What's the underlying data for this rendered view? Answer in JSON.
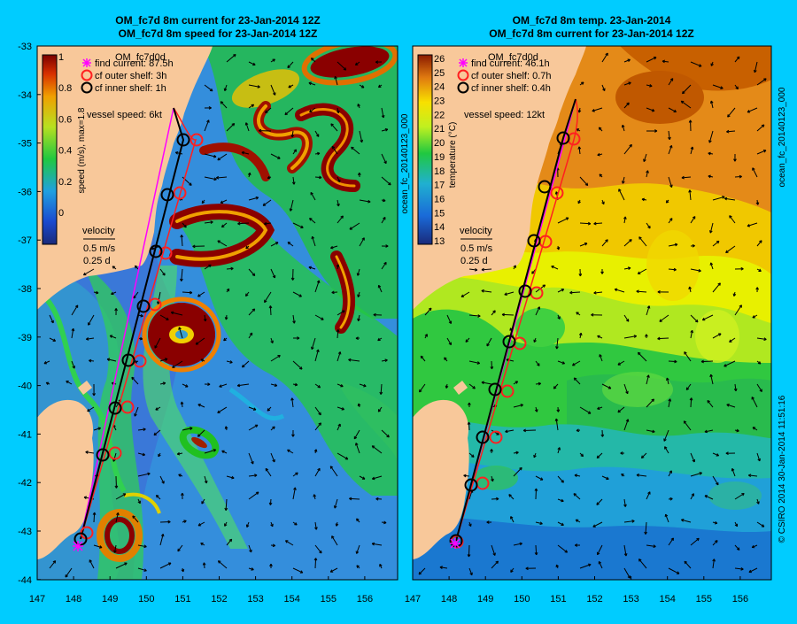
{
  "left_panel": {
    "title_line1": "OM_fc7d 8m current for 23-Jan-2014 12Z",
    "title_line2": "OM_fc7d 8m speed for 23-Jan-2014 12Z",
    "run_label": "OM_fc7d0d",
    "legend": [
      {
        "symbol": "magenta-star",
        "text": "find current: 87.5h"
      },
      {
        "symbol": "red-circle",
        "text": "cf outer shelf: 3h"
      },
      {
        "symbol": "black-circle",
        "text": "cf inner shelf: 1h"
      }
    ],
    "vessel_speed": "vessel speed: 6kt",
    "colorbar_label": "speed (m/s), max=1.8",
    "colorbar_ticks": [
      "1",
      "0.8",
      "0.6",
      "0.4",
      "0.2",
      "0"
    ],
    "velocity_label": "velocity",
    "velocity_scale_1": "0.5 m/s",
    "velocity_scale_2": "0.25 d"
  },
  "right_panel": {
    "title_line1": "OM_fc7d 8m temp. 23-Jan-2014",
    "title_line2": "OM_fc7d 8m current for 23-Jan-2014 12Z",
    "run_label": "OM_fc7d0d",
    "legend": [
      {
        "symbol": "magenta-star",
        "text": "find current: 46.1h"
      },
      {
        "symbol": "red-circle",
        "text": "cf outer shelf: 0.7h"
      },
      {
        "symbol": "black-circle",
        "text": "cf inner shelf: 0.4h"
      }
    ],
    "vessel_speed": "vessel speed: 12kt",
    "colorbar_label": "temperature (°C)",
    "colorbar_ticks": [
      "26",
      "25",
      "24",
      "23",
      "22",
      "21",
      "20",
      "19",
      "18",
      "17",
      "16",
      "15",
      "14",
      "13"
    ],
    "velocity_label": "velocity",
    "velocity_scale_1": "0.5 m/s",
    "velocity_scale_2": "0.25 d"
  },
  "left_side_text": "ocean_fc_20140123_000",
  "right_side_text_top": "ocean_fc_20140123_000",
  "right_side_text_bottom": "© CSIRO 2014   30-Jan-2014 11:51:16",
  "x_ticks": [
    "147",
    "148",
    "149",
    "150",
    "151",
    "152",
    "153",
    "154",
    "155",
    "156"
  ],
  "y_ticks": [
    "-33",
    "-34",
    "-35",
    "-36",
    "-37",
    "-38",
    "-39",
    "-40",
    "-41",
    "-42",
    "-43",
    "-44"
  ],
  "colors": {
    "background": "#00ccff",
    "land": "#f8c89a",
    "speed_low": "#3a6fd8",
    "speed_mid": "#25c825",
    "speed_high": "#7a0000",
    "temp_warm": "#e07a10",
    "temp_mid": "#f0f000",
    "temp_cool": "#1a7ad0",
    "route_black": "#000000",
    "route_red": "#ff2020",
    "route_magenta": "#ff00ff"
  }
}
